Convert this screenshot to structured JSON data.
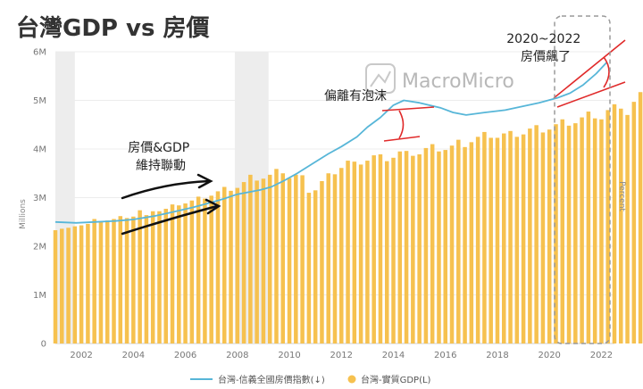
{
  "chart_data": {
    "type": "bar",
    "title": "台灣GDP vs 房價",
    "watermark": "MacroMicro",
    "y_left": {
      "label": "Millions",
      "ticks": [
        "0",
        "1M",
        "2M",
        "3M",
        "4M",
        "5M",
        "6M"
      ],
      "range": [
        0,
        6
      ]
    },
    "y_right": {
      "label": "Percent"
    },
    "x_ticks": [
      "2002",
      "2004",
      "2006",
      "2008",
      "2010",
      "2012",
      "2014",
      "2016",
      "2018",
      "2020",
      "2022"
    ],
    "x_range": [
      2001,
      2022.5
    ],
    "shaded_periods": [
      [
        2001.0,
        2001.75
      ],
      [
        2007.9,
        2009.2
      ]
    ],
    "series": [
      {
        "name": "台灣-實質GDP(L)",
        "kind": "bar",
        "color": "#f6c14f",
        "x_start": 2001.0,
        "step": 0.25,
        "values": [
          2.33,
          2.36,
          2.38,
          2.41,
          2.43,
          2.46,
          2.56,
          2.5,
          2.53,
          2.56,
          2.62,
          2.58,
          2.61,
          2.74,
          2.64,
          2.72,
          2.72,
          2.77,
          2.86,
          2.84,
          2.88,
          2.94,
          3.02,
          2.98,
          3.04,
          3.13,
          3.22,
          3.14,
          3.2,
          3.32,
          3.47,
          3.35,
          3.39,
          3.47,
          3.59,
          3.5,
          3.4,
          3.47,
          3.46,
          3.1,
          3.15,
          3.34,
          3.5,
          3.48,
          3.61,
          3.76,
          3.74,
          3.68,
          3.76,
          3.87,
          3.89,
          3.75,
          3.82,
          3.95,
          3.96,
          3.86,
          3.89,
          4.02,
          4.1,
          3.95,
          3.98,
          4.07,
          4.19,
          4.04,
          4.14,
          4.25,
          4.35,
          4.23,
          4.23,
          4.32,
          4.37,
          4.25,
          4.3,
          4.42,
          4.49,
          4.34,
          4.4,
          4.51,
          4.61,
          4.48,
          4.53,
          4.65,
          4.77,
          4.63,
          4.61,
          4.8,
          4.92,
          4.83,
          4.7,
          4.97,
          5.17,
          5.04,
          4.9,
          5.12,
          5.4,
          5.32,
          5.15
        ]
      },
      {
        "name": "台灣-信義全國房價指數(↓)",
        "kind": "line",
        "color": "#57b6d8",
        "points": [
          [
            2001.0,
            2.5
          ],
          [
            2001.8,
            2.48
          ],
          [
            2002.5,
            2.5
          ],
          [
            2003.3,
            2.52
          ],
          [
            2004.0,
            2.55
          ],
          [
            2004.8,
            2.62
          ],
          [
            2005.5,
            2.7
          ],
          [
            2006.3,
            2.8
          ],
          [
            2007.0,
            2.9
          ],
          [
            2007.5,
            2.98
          ],
          [
            2008.0,
            3.07
          ],
          [
            2008.5,
            3.12
          ],
          [
            2008.9,
            3.16
          ],
          [
            2009.3,
            3.22
          ],
          [
            2009.8,
            3.35
          ],
          [
            2010.3,
            3.5
          ],
          [
            2010.9,
            3.7
          ],
          [
            2011.5,
            3.9
          ],
          [
            2012.0,
            4.05
          ],
          [
            2012.6,
            4.25
          ],
          [
            2013.0,
            4.45
          ],
          [
            2013.5,
            4.65
          ],
          [
            2014.0,
            4.9
          ],
          [
            2014.4,
            5.0
          ],
          [
            2015.0,
            4.95
          ],
          [
            2015.8,
            4.85
          ],
          [
            2016.3,
            4.75
          ],
          [
            2016.8,
            4.7
          ],
          [
            2017.5,
            4.75
          ],
          [
            2018.3,
            4.8
          ],
          [
            2019.0,
            4.88
          ],
          [
            2019.6,
            4.95
          ],
          [
            2020.3,
            5.05
          ],
          [
            2020.8,
            5.15
          ],
          [
            2021.3,
            5.32
          ],
          [
            2021.8,
            5.55
          ],
          [
            2022.2,
            5.78
          ]
        ]
      }
    ],
    "annotations": [
      {
        "lines": [
          "房價&GDP",
          "維持聯動"
        ]
      },
      {
        "lines": [
          "偏離有泡沫"
        ]
      },
      {
        "lines": [
          "2020~2022",
          "房價飆了"
        ]
      }
    ],
    "legend_placement": "bottom-center",
    "grid": "horizontal"
  }
}
